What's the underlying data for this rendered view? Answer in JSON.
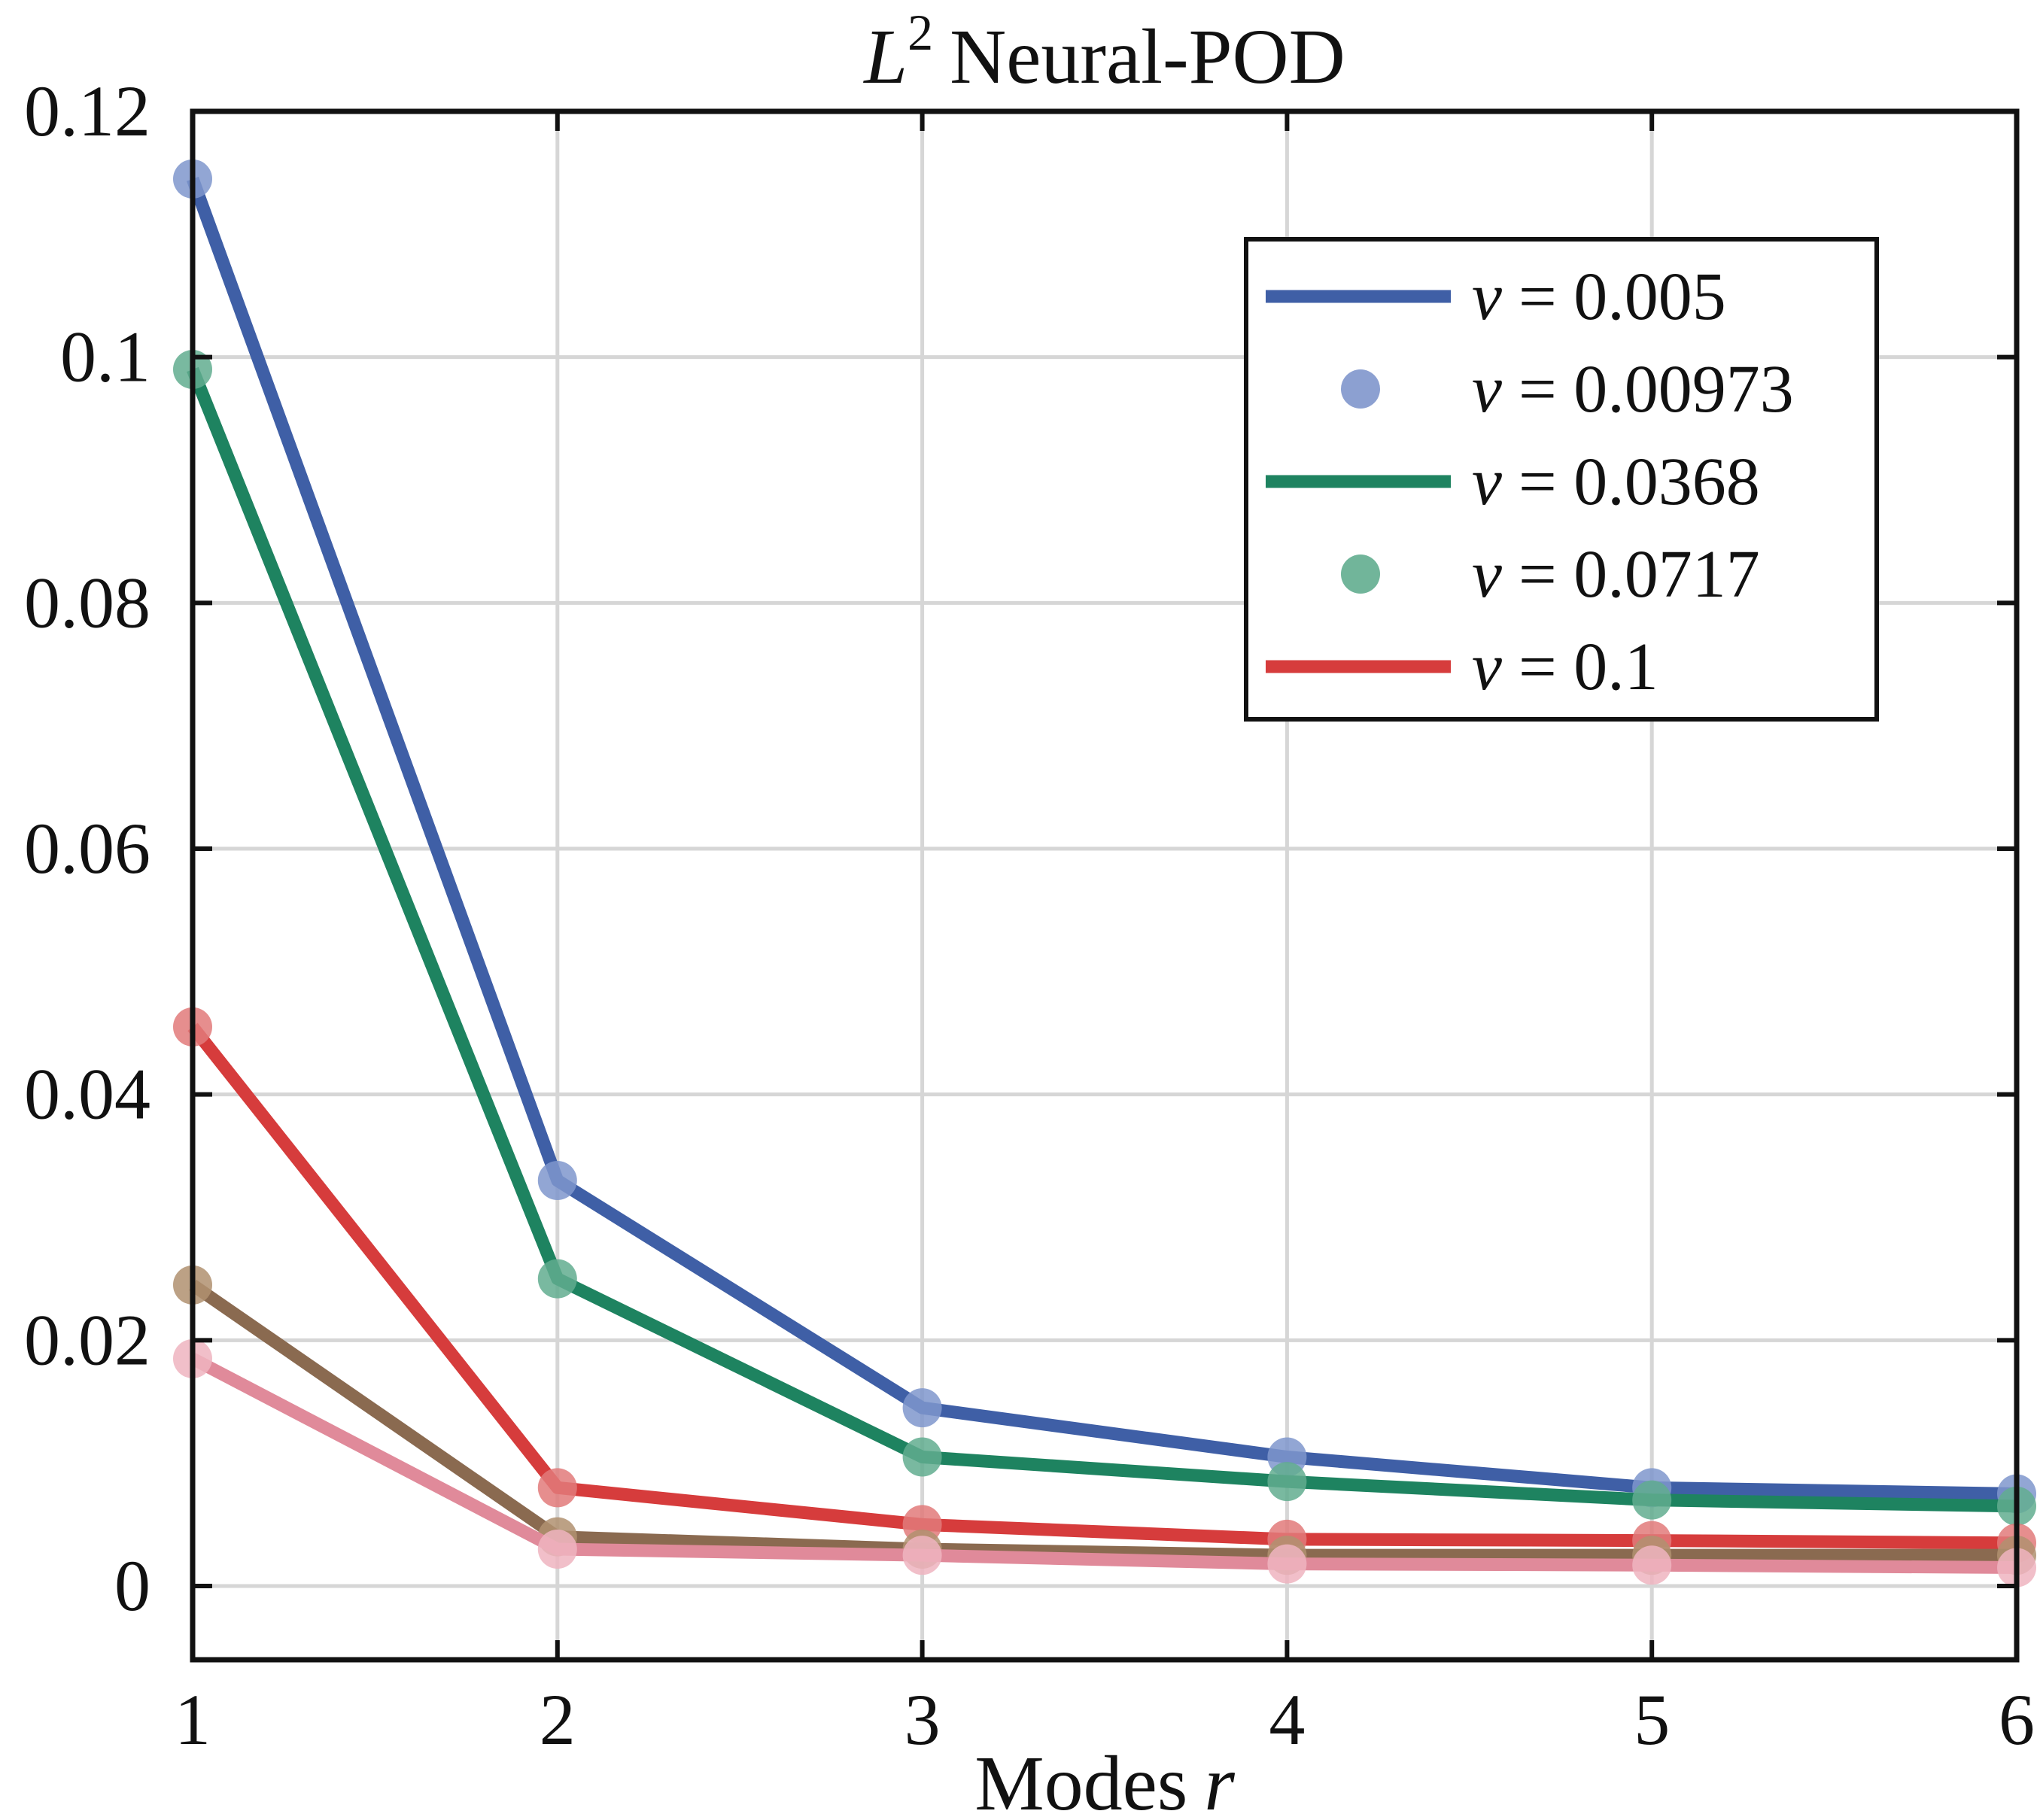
{
  "chart_data": {
    "type": "line",
    "title": {
      "var": "L",
      "sup": "2",
      "text": "Neural-POD"
    },
    "xlabel": {
      "text": "Modes",
      "var": "r"
    },
    "ylabel": "",
    "x": [
      1,
      2,
      3,
      4,
      5,
      6
    ],
    "xticks": [
      "1",
      "2",
      "3",
      "4",
      "5",
      "6"
    ],
    "xlim": [
      1,
      6
    ],
    "yticks": [
      "0",
      "0.02",
      "0.04",
      "0.06",
      "0.08",
      "0.1",
      "0.12"
    ],
    "ytick_values": [
      0,
      0.02,
      0.04,
      0.06,
      0.08,
      0.1,
      0.12
    ],
    "ylim": [
      -0.006,
      0.12
    ],
    "grid": true,
    "legend_position": "top-right",
    "series": [
      {
        "name": "ν = 0.005",
        "legend_var": "ν",
        "legend_value": "= 0.005",
        "color": "#3F5FA6",
        "marker_color": "#7F96CC",
        "values": [
          0.1145,
          0.033,
          0.0145,
          0.0105,
          0.008,
          0.0075
        ]
      },
      {
        "name": "ν = 0.00973",
        "legend_var": "ν",
        "legend_value": "= 0.00973",
        "color": "#8A6A50",
        "marker_color": "#B09070",
        "values": [
          0.0245,
          0.004,
          0.003,
          0.0025,
          0.0025,
          0.0025
        ]
      },
      {
        "name": "ν = 0.0368",
        "legend_var": "ν",
        "legend_value": "= 0.0368",
        "color": "#1E8360",
        "marker_color": "#62AD8F",
        "values": [
          0.099,
          0.025,
          0.0105,
          0.0085,
          0.007,
          0.0065
        ]
      },
      {
        "name": "ν = 0.0717",
        "legend_var": "ν",
        "legend_value": "= 0.0717",
        "color": "#E08A9A",
        "marker_color": "#EFB4C0",
        "values": [
          0.0185,
          0.003,
          0.0025,
          0.0018,
          0.0017,
          0.0015
        ]
      },
      {
        "name": "ν = 0.1",
        "legend_var": "ν",
        "legend_value": "= 0.1",
        "color": "#D63C3C",
        "marker_color": "#E27A7A",
        "values": [
          0.0455,
          0.008,
          0.005,
          0.0038,
          0.0037,
          0.0035
        ]
      }
    ],
    "legend": [
      {
        "series": 0,
        "style": "line"
      },
      {
        "series": 0,
        "style": "marker",
        "label_series": 1
      },
      {
        "series": 2,
        "style": "line"
      },
      {
        "series": 2,
        "style": "marker",
        "label_series": 3
      },
      {
        "series": 4,
        "style": "line"
      }
    ]
  }
}
